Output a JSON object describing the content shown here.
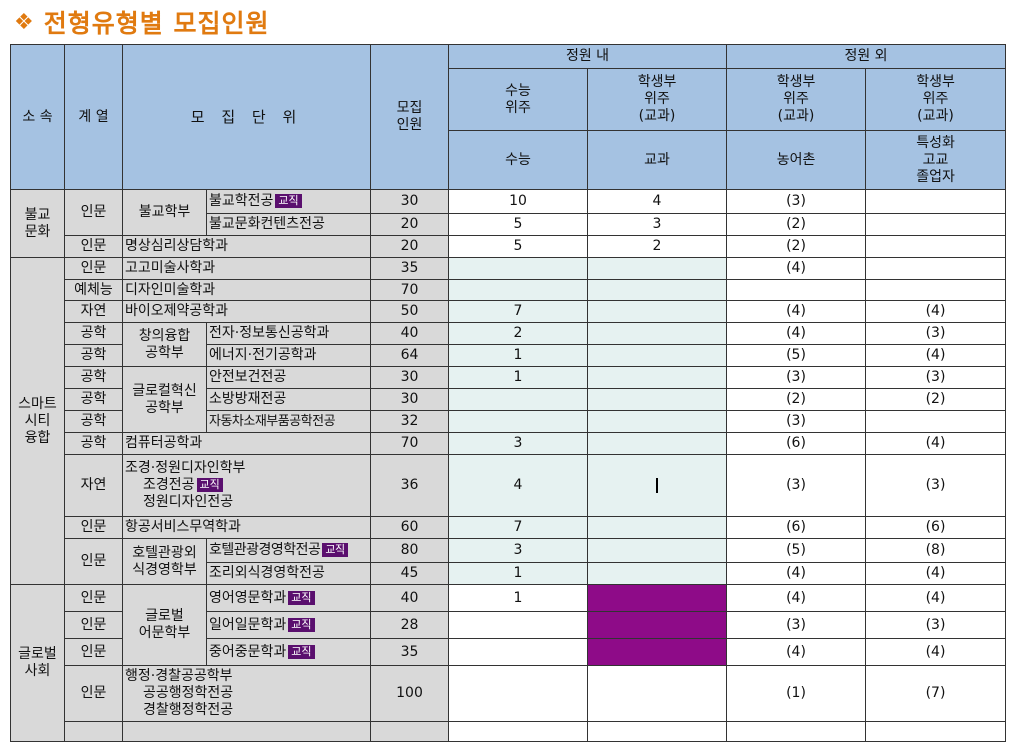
{
  "title": "전형유형별 모집인원",
  "header": {
    "affil": "소 속",
    "series": "계 열",
    "unit": "모 집 단 위",
    "quota1": "모집",
    "quota2": "인원",
    "inside": "정원 내",
    "outside": "정원 외",
    "col_a1": "수능",
    "col_a2": "위주",
    "col_b1": "학생부",
    "col_b2": "위주",
    "col_b3": "(교과)",
    "col_c1": "학생부",
    "col_c2": "위주",
    "col_c3": "(교과)",
    "col_d1": "학생부",
    "col_d2": "위주",
    "col_d3": "(교과)",
    "sub_a": "수능",
    "sub_b": "교과",
    "sub_c": "농어촌",
    "sub_d1": "특성화",
    "sub_d2": "고교",
    "sub_d3": "졸업자"
  },
  "badge": "교직",
  "affiliations": {
    "bul1": "불교",
    "bul2": "문화",
    "sm1": "스마트",
    "sm2": "시티",
    "sm3": "융합",
    "gl1": "글로벌",
    "gl2": "사회"
  },
  "rows": {
    "r1": {
      "series": "인문",
      "group": "불교학부",
      "unit": "불교학전공",
      "n": "30",
      "a": "10",
      "b": "4",
      "c": "(3)",
      "d": ""
    },
    "r2": {
      "unit": "불교문화컨텐츠전공",
      "n": "20",
      "a": "5",
      "b": "3",
      "c": "(2)",
      "d": ""
    },
    "r3": {
      "series": "인문",
      "unit": "명상심리상담학과",
      "n": "20",
      "a": "5",
      "b": "2",
      "c": "(2)",
      "d": ""
    },
    "r4": {
      "series": "인문",
      "unit": "고고미술사학과",
      "n": "35",
      "c": "(4)",
      "d": ""
    },
    "r5": {
      "series": "예체능",
      "unit": "디자인미술학과",
      "n": "70",
      "c": "",
      "d": ""
    },
    "r6": {
      "series": "자연",
      "unit": "바이오제약공학과",
      "n": "50",
      "a": "7",
      "c": "(4)",
      "d": "(4)"
    },
    "r7": {
      "series": "공학",
      "group1": "창의융합",
      "group2": "공학부",
      "unit": "전자·정보통신공학과",
      "n": "40",
      "a": "2",
      "c": "(4)",
      "d": "(3)"
    },
    "r8": {
      "series": "공학",
      "unit": "에너지·전기공학과",
      "n": "64",
      "a": "1",
      "c": "(5)",
      "d": "(4)"
    },
    "r9": {
      "series": "공학",
      "group1": "글로컬혁신",
      "group2": "공학부",
      "unit": "안전보건전공",
      "n": "30",
      "a": "1",
      "c": "(3)",
      "d": "(3)"
    },
    "r10": {
      "series": "공학",
      "unit": "소방방재전공",
      "n": "30",
      "c": "(2)",
      "d": "(2)"
    },
    "r11": {
      "series": "공학",
      "unit": "자동차소재부품공학전공",
      "n": "32",
      "c": "(3)",
      "d": ""
    },
    "r12": {
      "series": "공학",
      "unit": "컴퓨터공학과",
      "n": "70",
      "a": "3",
      "c": "(6)",
      "d": "(4)"
    },
    "r13": {
      "series": "자연",
      "unit1": "조경·정원디자인학부",
      "unit2": "조경전공",
      "unit3": "정원디자인전공",
      "n": "36",
      "a": "4",
      "c": "(3)",
      "d": "(3)"
    },
    "r14": {
      "series": "인문",
      "unit": "항공서비스무역학과",
      "n": "60",
      "a": "7",
      "c": "(6)",
      "d": "(6)"
    },
    "r15": {
      "series": "인문",
      "group1": "호텔관광외",
      "group2": "식경영학부",
      "unit": "호텔관광경영학전공",
      "n": "80",
      "a": "3",
      "c": "(5)",
      "d": "(8)"
    },
    "r16": {
      "unit": "조리외식경영학전공",
      "n": "45",
      "a": "1",
      "c": "(4)",
      "d": "(4)"
    },
    "r17": {
      "series": "인문",
      "group1": "글로벌",
      "group2": "어문학부",
      "unit": "영어영문학과",
      "n": "40",
      "a": "1",
      "c": "(4)",
      "d": "(4)"
    },
    "r18": {
      "series": "인문",
      "unit": "일어일문학과",
      "n": "28",
      "c": "(3)",
      "d": "(3)"
    },
    "r19": {
      "series": "인문",
      "unit": "중어중문학과",
      "n": "35",
      "c": "(4)",
      "d": "(4)"
    },
    "r20": {
      "series": "인문",
      "unit1": "행정·경찰공공학부",
      "unit2": "공공행정학전공",
      "unit3": "경찰행정학전공",
      "n": "100",
      "c": "(1)",
      "d": "(7)"
    }
  },
  "colors": {
    "title": "#e07a10",
    "header": "#a5c2e2",
    "gray": "#d9d9d9",
    "cyan": "#e6f2f1",
    "purple": "#8e0b88"
  }
}
